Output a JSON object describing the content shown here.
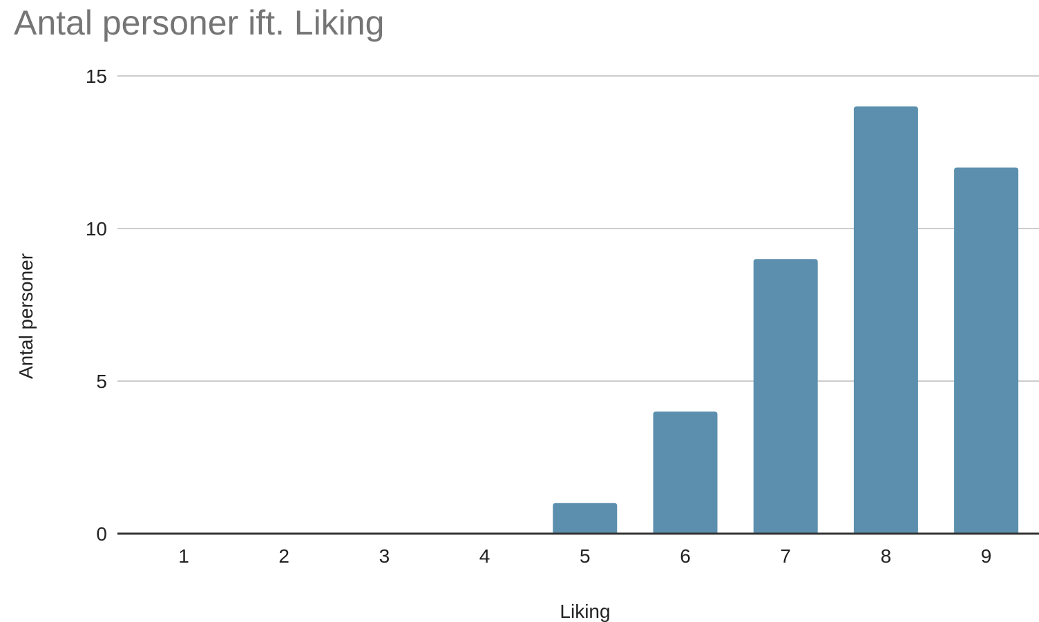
{
  "chart_data": {
    "type": "bar",
    "title": "Antal personer ift. Liking",
    "xlabel": "Liking",
    "ylabel": "Antal personer",
    "categories": [
      "1",
      "2",
      "3",
      "4",
      "5",
      "6",
      "7",
      "8",
      "9"
    ],
    "values": [
      0,
      0,
      0,
      0,
      1,
      4,
      9,
      14,
      12
    ],
    "ylim": [
      0,
      15
    ],
    "yticks": [
      0,
      5,
      10,
      15
    ],
    "grid": true,
    "legend": "none",
    "colors": {
      "bar": "#5b8fad",
      "grid": "#cccccc",
      "baseline": "#333333"
    }
  }
}
